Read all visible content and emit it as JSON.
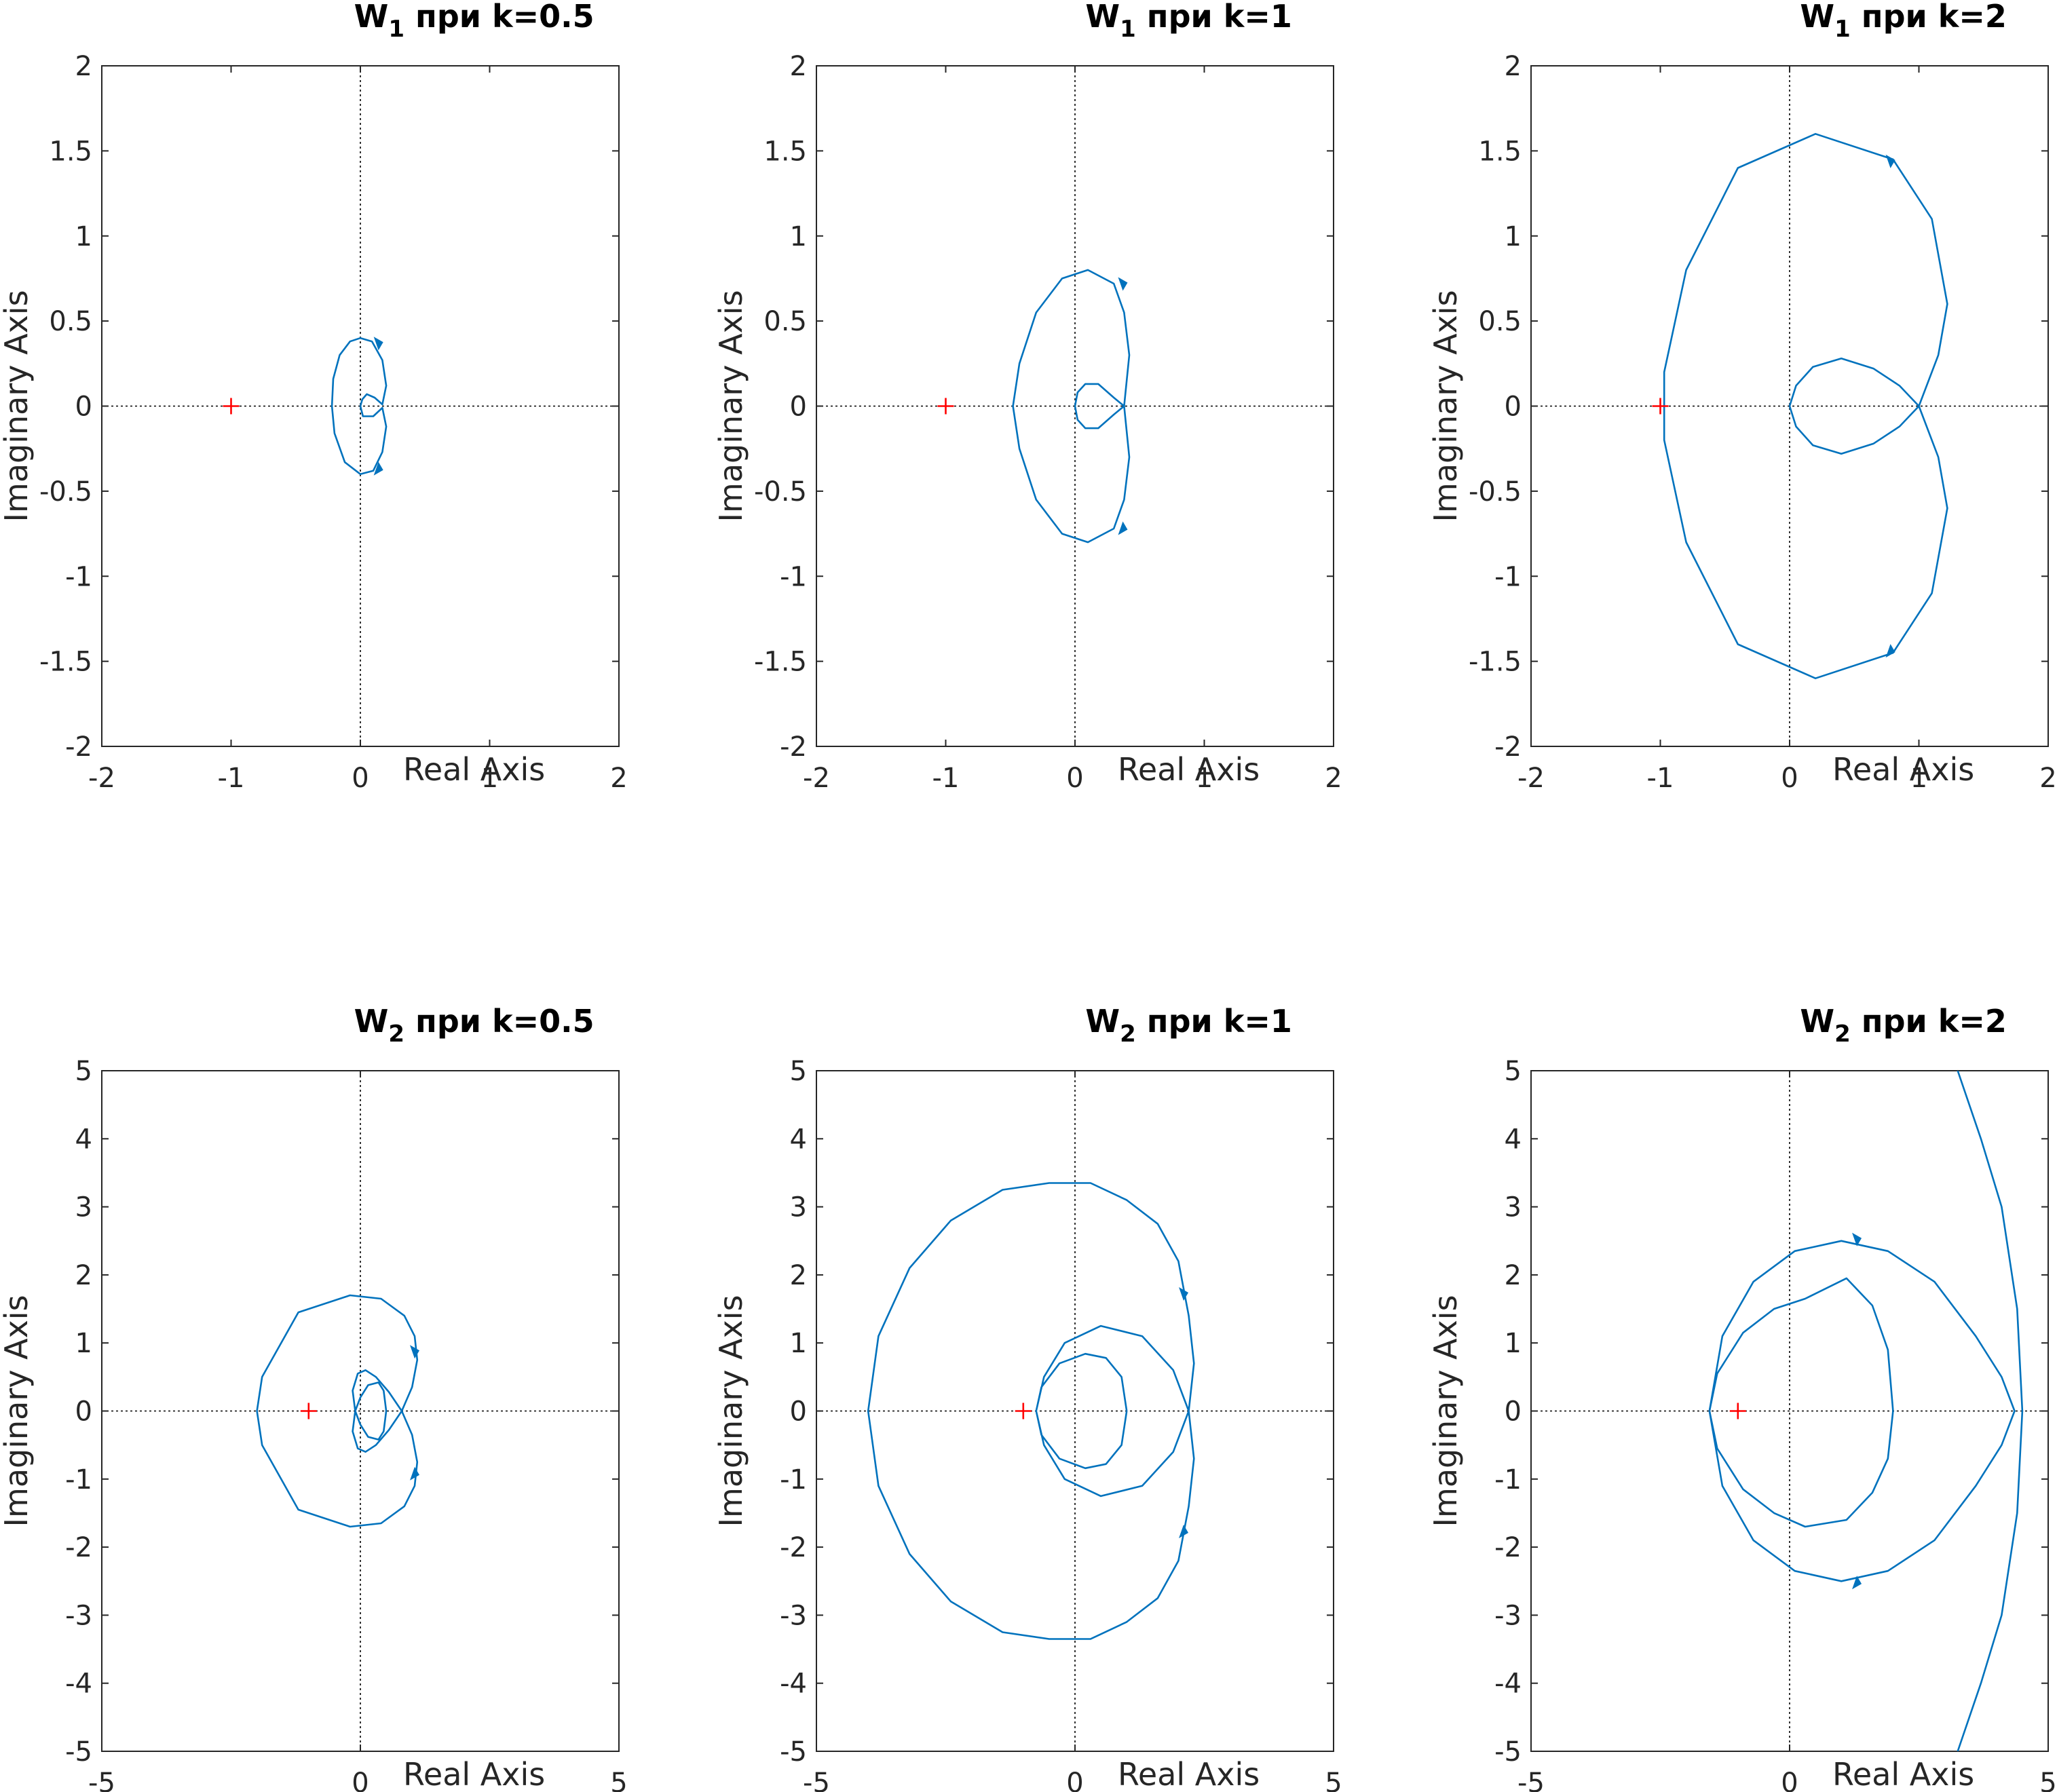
{
  "chart_data": [
    {
      "type": "line",
      "title": {
        "main": "W",
        "sub": "1",
        "suffix": " при k=0.5"
      },
      "xlabel": "Real Axis",
      "ylabel": "Imaginary Axis",
      "xlim": [
        -2,
        2
      ],
      "ylim": [
        -2,
        2
      ],
      "xticks": [
        -2,
        -1,
        0,
        1,
        2
      ],
      "yticks": [
        -2,
        -1.5,
        -1,
        -0.5,
        0,
        0.5,
        1,
        1.5,
        2
      ],
      "critical_point": [
        -1,
        0
      ],
      "series": [
        {
          "x": [
            0,
            0.015,
            0.05,
            0.11,
            0.17,
            0.2,
            0.17,
            0.09,
            0,
            -0.08,
            -0.16,
            -0.21,
            -0.22,
            -0.2,
            -0.12,
            0,
            0.1,
            0.17,
            0.2,
            0.17,
            0.1,
            0.02,
            0
          ],
          "y": [
            0,
            0.04,
            0.07,
            0.05,
            0.01,
            0.12,
            0.27,
            0.38,
            0.4,
            0.38,
            0.3,
            0.16,
            0,
            -0.16,
            -0.33,
            -0.4,
            -0.38,
            -0.27,
            -0.12,
            -0.01,
            -0.06,
            -0.06,
            0
          ]
        }
      ],
      "arrows": [
        {
          "x": 0.14,
          "y": 0.36
        },
        {
          "x": 0.14,
          "y": -0.36
        }
      ]
    },
    {
      "type": "line",
      "title": {
        "main": "W",
        "sub": "1",
        "suffix": " при k=1"
      },
      "xlabel": "Real Axis",
      "ylabel": "Imaginary Axis",
      "xlim": [
        -2,
        2
      ],
      "ylim": [
        -2,
        2
      ],
      "xticks": [
        -2,
        -1,
        0,
        1,
        2
      ],
      "yticks": [
        -2,
        -1.5,
        -1,
        -0.5,
        0,
        0.5,
        1,
        1.5,
        2
      ],
      "critical_point": [
        -1,
        0
      ],
      "series": [
        {
          "x": [
            0,
            0.02,
            0.08,
            0.18,
            0.3,
            0.38,
            0.42,
            0.38,
            0.3,
            0.1,
            -0.1,
            -0.3,
            -0.43,
            -0.48,
            -0.43,
            -0.3,
            -0.1,
            0.1,
            0.3,
            0.38,
            0.42,
            0.38,
            0.3,
            0.18,
            0.08,
            0.02,
            0
          ],
          "y": [
            0,
            0.08,
            0.13,
            0.13,
            0.05,
            0,
            0.3,
            0.55,
            0.72,
            0.8,
            0.75,
            0.55,
            0.25,
            0,
            -0.25,
            -0.55,
            -0.75,
            -0.8,
            -0.72,
            -0.55,
            -0.3,
            0,
            -0.05,
            -0.13,
            -0.13,
            -0.08,
            0
          ]
        }
      ],
      "arrows": [
        {
          "x": 0.37,
          "y": 0.71
        },
        {
          "x": 0.37,
          "y": -0.71
        }
      ]
    },
    {
      "type": "line",
      "title": {
        "main": "W",
        "sub": "1",
        "suffix": " при k=2"
      },
      "xlabel": "Real Axis",
      "ylabel": "Imaginary Axis",
      "xlim": [
        -2,
        2
      ],
      "ylim": [
        -2,
        2
      ],
      "xticks": [
        -2,
        -1,
        0,
        1,
        2
      ],
      "yticks": [
        -2,
        -1.5,
        -1,
        -0.5,
        0,
        0.5,
        1,
        1.5,
        2
      ],
      "critical_point": [
        -1,
        0
      ],
      "series": [
        {
          "x": [
            0,
            0.05,
            0.18,
            0.4,
            0.65,
            0.85,
            1,
            1.15,
            1.22,
            1.1,
            0.8,
            0.2,
            -0.4,
            -0.8,
            -0.97,
            -0.97,
            -0.8,
            -0.4,
            0.2,
            0.8,
            1.1,
            1.22,
            1.15,
            1,
            0.85,
            0.65,
            0.4,
            0.18,
            0.05,
            0
          ],
          "y": [
            0,
            0.12,
            0.23,
            0.28,
            0.22,
            0.12,
            0,
            0.3,
            0.6,
            1.1,
            1.45,
            1.6,
            1.4,
            0.8,
            0.2,
            -0.2,
            -0.8,
            -1.4,
            -1.6,
            -1.45,
            -1.1,
            -0.6,
            -0.3,
            0,
            -0.12,
            -0.22,
            -0.28,
            -0.23,
            -0.12,
            0
          ]
        }
      ],
      "arrows": [
        {
          "x": 0.78,
          "y": 1.43
        },
        {
          "x": 0.78,
          "y": -1.43
        }
      ]
    },
    {
      "type": "line",
      "title": {
        "main": "W",
        "sub": "2",
        "suffix": " при k=0.5"
      },
      "xlabel": "Real Axis",
      "ylabel": "Imaginary Axis",
      "xlim": [
        -5,
        5
      ],
      "ylim": [
        -5,
        5
      ],
      "xticks": [
        -5,
        0,
        5
      ],
      "yticks": [
        -5,
        -4,
        -3,
        -2,
        -1,
        0,
        1,
        2,
        3,
        4,
        5
      ],
      "critical_point": [
        -1,
        0
      ],
      "series": [
        {
          "x": [
            0.5,
            0.45,
            0.35,
            0.15,
            0,
            -0.1,
            -0.15,
            -0.05,
            0.1,
            0.3,
            0.55,
            0.8,
            1.0,
            1.1,
            1.05,
            0.85,
            0.4,
            -0.2,
            -1.2,
            -1.9,
            -2.0,
            -1.9,
            -1.2,
            -0.2,
            0.4,
            0.85,
            1.05,
            1.1,
            1.0,
            0.8,
            0.55,
            0.3,
            0.1,
            -0.05,
            -0.15,
            -0.1,
            0,
            0.15,
            0.35,
            0.45,
            0.5
          ],
          "y": [
            0,
            0.3,
            0.42,
            0.38,
            0.2,
            0,
            -0.3,
            -0.55,
            -0.6,
            -0.5,
            -0.28,
            0,
            0.35,
            0.75,
            1.1,
            1.4,
            1.65,
            1.7,
            1.45,
            0.5,
            0,
            -0.5,
            -1.45,
            -1.7,
            -1.65,
            -1.4,
            -1.1,
            -0.75,
            -0.35,
            0,
            0.28,
            0.5,
            0.6,
            0.55,
            0.3,
            0,
            -0.2,
            -0.38,
            -0.42,
            -0.3,
            0
          ]
        }
      ],
      "arrows": [
        {
          "x": 1.05,
          "y": 0.85
        },
        {
          "x": 1.05,
          "y": -0.9
        }
      ]
    },
    {
      "type": "line",
      "title": {
        "main": "W",
        "sub": "2",
        "suffix": " при k=1"
      },
      "xlabel": "Real Axis",
      "ylabel": "Imaginary Axis",
      "xlim": [
        -5,
        5
      ],
      "ylim": [
        -5,
        5
      ],
      "xticks": [
        -5,
        0,
        5
      ],
      "yticks": [
        -5,
        -4,
        -3,
        -2,
        -1,
        0,
        1,
        2,
        3,
        4,
        5
      ],
      "critical_point": [
        -1,
        0
      ],
      "series": [
        {
          "x": [
            1.0,
            0.9,
            0.6,
            0.2,
            -0.3,
            -0.65,
            -0.75,
            -0.6,
            -0.2,
            0.5,
            1.3,
            1.9,
            2.2,
            2.3,
            2.2,
            2.0,
            1.6,
            1.0,
            0.3,
            -0.5,
            -1.4,
            -2.4,
            -3.2,
            -3.8,
            -4.0,
            -3.8,
            -3.2,
            -2.4,
            -1.4,
            -0.5,
            0.3,
            1.0,
            1.6,
            2.0,
            2.2,
            2.3,
            2.2,
            1.9,
            1.3,
            0.5,
            -0.2,
            -0.6,
            -0.75,
            -0.65,
            -0.3,
            0.2,
            0.6,
            0.9,
            1.0
          ],
          "y": [
            0,
            0.5,
            0.78,
            0.84,
            0.7,
            0.35,
            0,
            -0.5,
            -1.0,
            -1.25,
            -1.1,
            -0.6,
            0,
            0.7,
            1.4,
            2.2,
            2.75,
            3.1,
            3.35,
            3.35,
            3.25,
            2.8,
            2.1,
            1.1,
            0,
            -1.1,
            -2.1,
            -2.8,
            -3.25,
            -3.35,
            -3.35,
            -3.1,
            -2.75,
            -2.2,
            -1.4,
            -0.7,
            0,
            0.6,
            1.1,
            1.25,
            1.0,
            0.5,
            0,
            -0.35,
            -0.7,
            -0.84,
            -0.78,
            -0.5,
            0
          ]
        }
      ],
      "arrows": [
        {
          "x": 2.1,
          "y": 1.7
        },
        {
          "x": 2.1,
          "y": -1.75
        }
      ]
    },
    {
      "type": "line",
      "title": {
        "main": "W",
        "sub": "2",
        "suffix": " при k=2"
      },
      "xlabel": "Real Axis",
      "ylabel": "Imaginary Axis",
      "xlim": [
        -5,
        5
      ],
      "ylim": [
        -5,
        5
      ],
      "xticks": [
        -5,
        0,
        5
      ],
      "yticks": [
        -5,
        -4,
        -3,
        -2,
        -1,
        0,
        1,
        2,
        3,
        4,
        5
      ],
      "critical_point": [
        -1,
        0
      ],
      "series": [
        {
          "x": [
            2.0,
            1.9,
            1.6,
            1.1,
            0.3,
            -0.3,
            -0.9,
            -1.4,
            -1.55,
            -1.4,
            -0.9,
            -0.3,
            0.3,
            1.1,
            1.6,
            1.9,
            2.0
          ],
          "y": [
            0,
            0.9,
            1.55,
            1.95,
            1.65,
            1.5,
            1.15,
            0.55,
            0,
            -0.55,
            -1.15,
            -1.5,
            -1.7,
            -1.6,
            -1.2,
            -0.7,
            0
          ]
        },
        {
          "x": [
            -1.55,
            -1.3,
            -0.7,
            0.1,
            1.0,
            1.9,
            2.8,
            3.6,
            4.1,
            4.35,
            4.1,
            3.6,
            2.8,
            1.9,
            1.0,
            0.1,
            -0.7,
            -1.3,
            -1.55
          ],
          "y": [
            0,
            1.1,
            1.9,
            2.35,
            2.5,
            2.35,
            1.9,
            1.1,
            0.5,
            0,
            -0.5,
            -1.1,
            -1.9,
            -2.35,
            -2.5,
            -2.35,
            -1.9,
            -1.1,
            0
          ]
        },
        {
          "x": [
            3.25,
            3.7,
            4.1,
            4.4,
            4.5,
            4.4,
            4.1,
            3.7,
            3.25
          ],
          "y": [
            5,
            4.0,
            3.0,
            1.5,
            0,
            -1.5,
            -3.0,
            -4.0,
            -5
          ]
        }
      ],
      "arrows": [
        {
          "x": 1.3,
          "y": 2.5
        },
        {
          "x": 1.3,
          "y": -2.5
        }
      ]
    }
  ]
}
